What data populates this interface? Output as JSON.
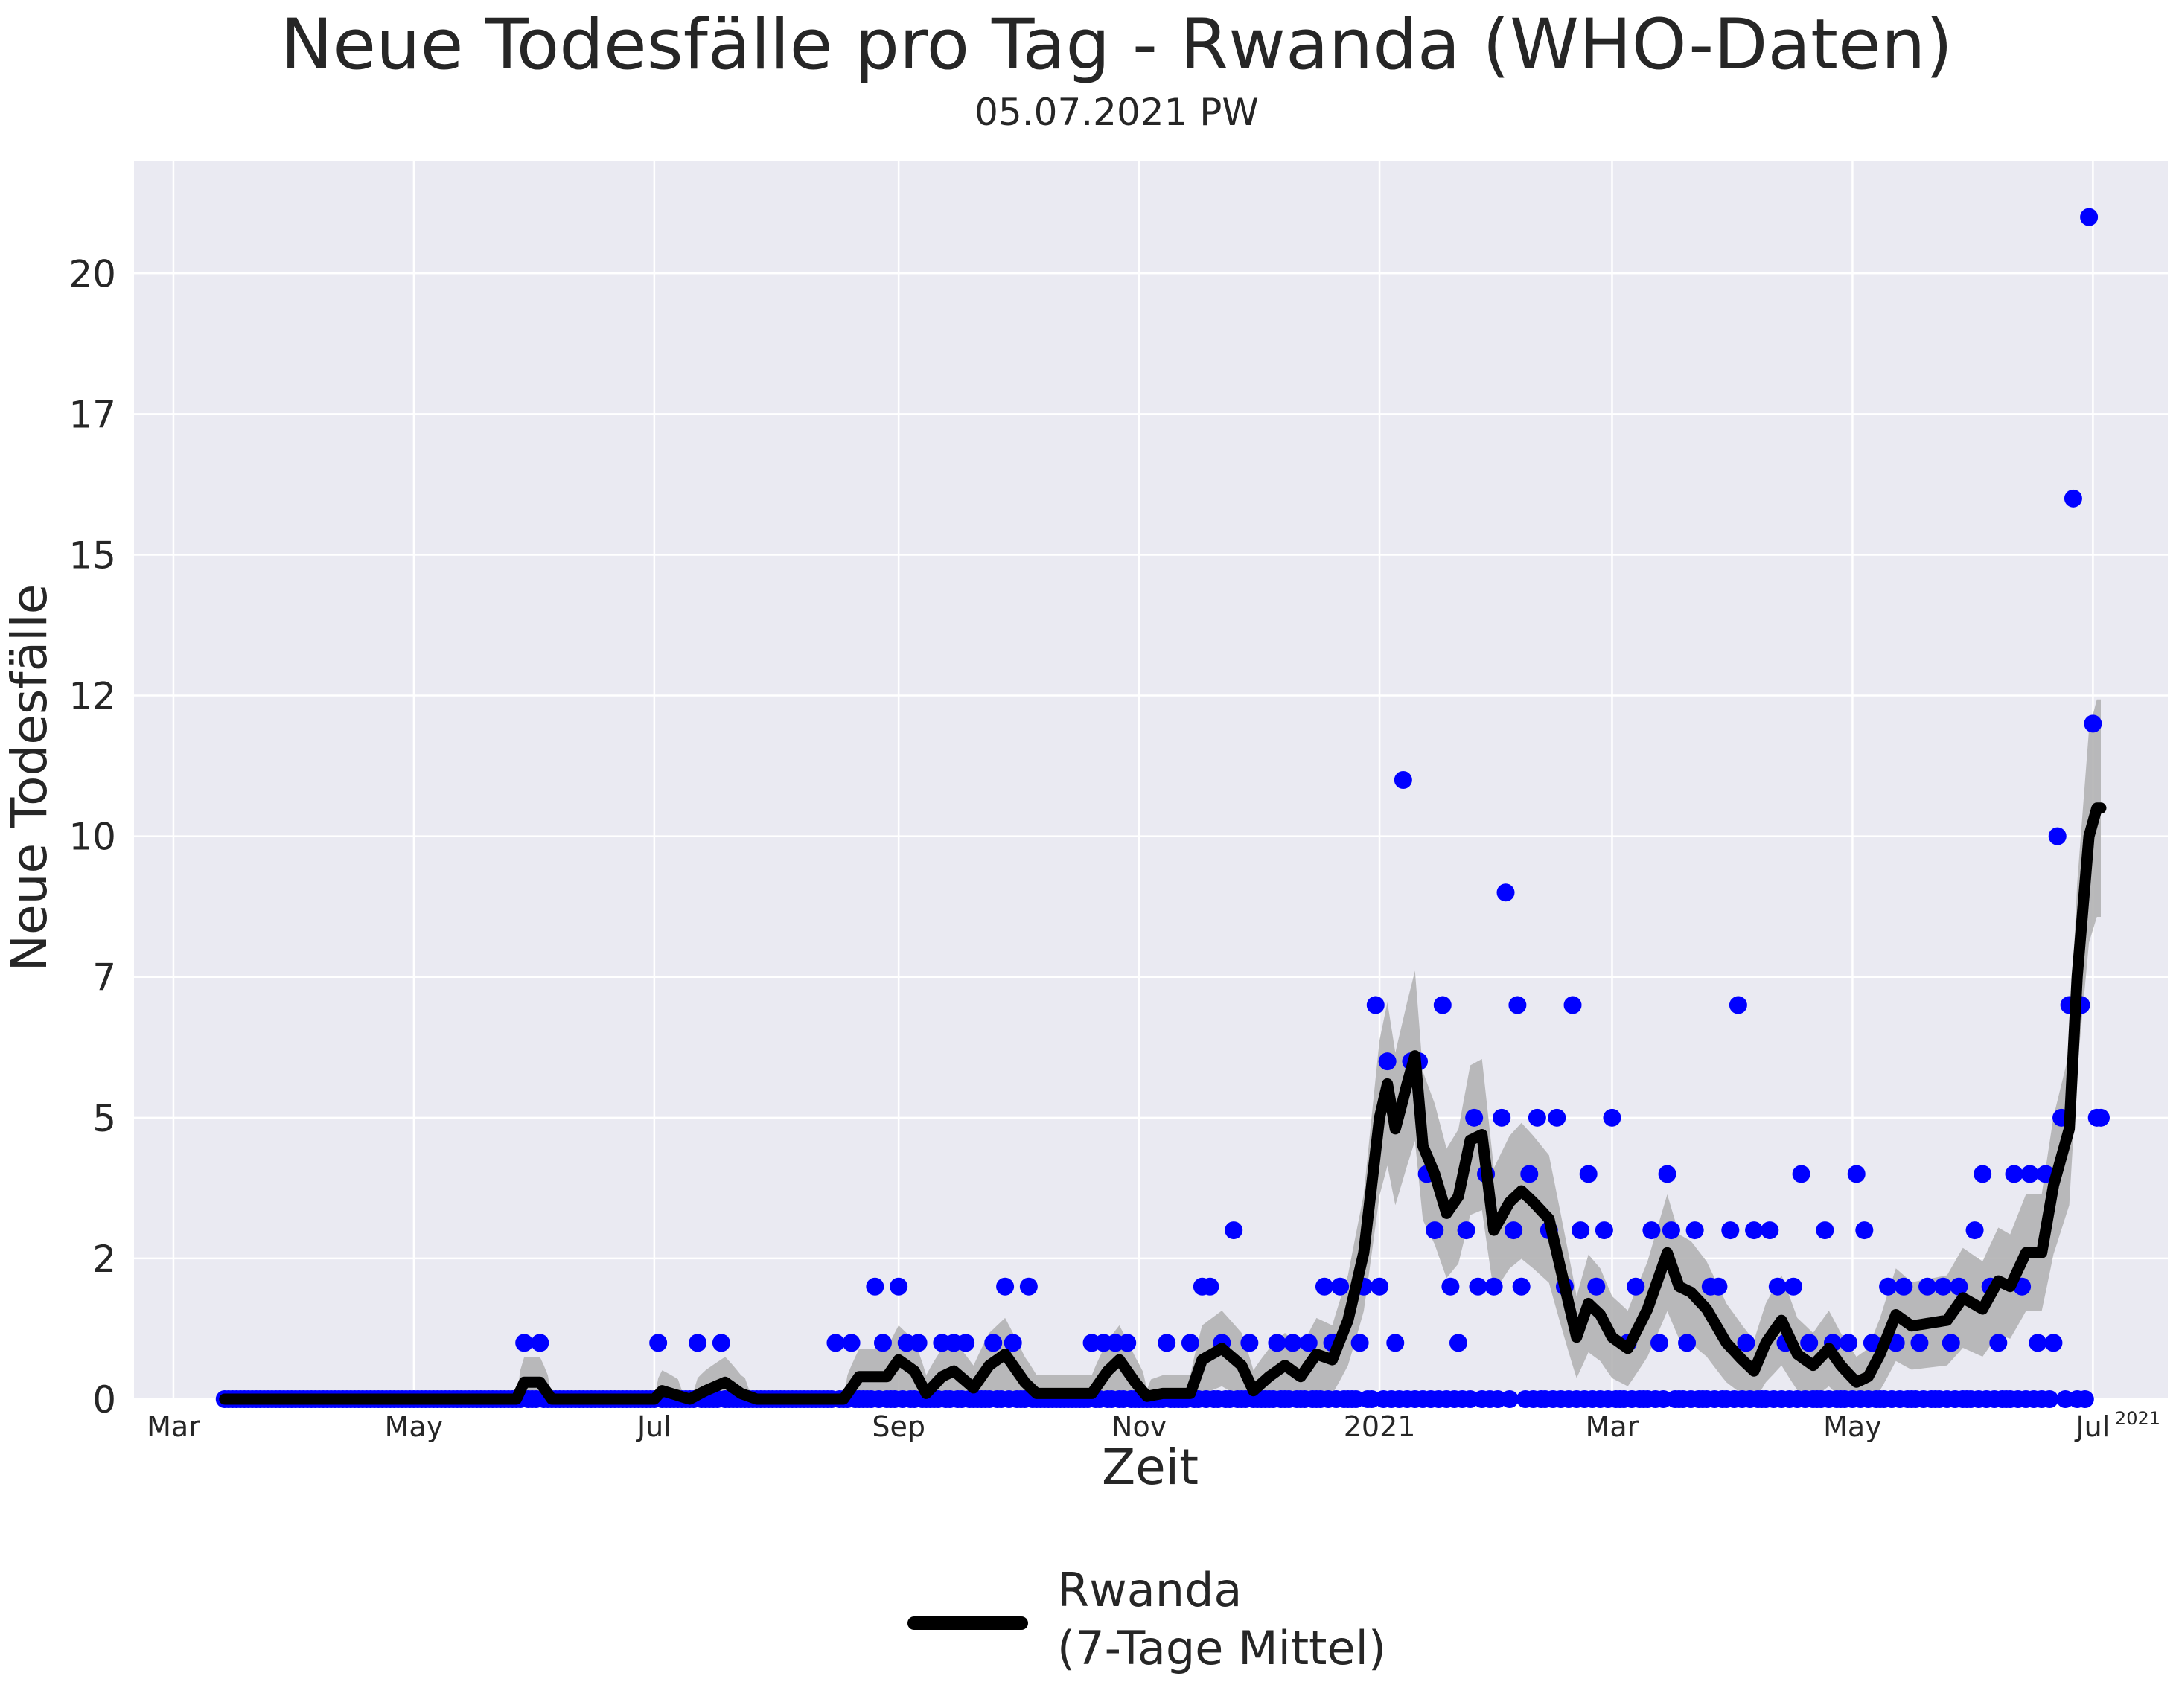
{
  "title": "Neue Todesfälle pro Tag - Rwanda (WHO-Daten)",
  "subtitle": "05.07.2021 PW",
  "chart_data": {
    "type": "line",
    "xlabel": "Zeit",
    "ylabel": "Neue Todesfälle",
    "x_tick_labels": [
      "Mar",
      "May",
      "Jul",
      "Sep",
      "Nov",
      "2021",
      "Mar",
      "May",
      "Jul"
    ],
    "x_tick_dates": [
      "2020-03-01",
      "2020-05-01",
      "2020-07-01",
      "2020-09-01",
      "2020-11-01",
      "2021-01-01",
      "2021-03-01",
      "2021-05-01",
      "2021-07-01"
    ],
    "x_offset_label": "2021",
    "y_tick_labels": [
      "0",
      "2",
      "5",
      "7",
      "10",
      "12",
      "15",
      "17",
      "20"
    ],
    "y_tick_values": [
      0,
      2.5,
      5,
      7.5,
      10,
      12.5,
      15,
      17.5,
      20
    ],
    "xlim": [
      "2020-02-20",
      "2021-07-20"
    ],
    "ylim": [
      0,
      22
    ],
    "grid": true,
    "legend_position": "bottom-center",
    "colors": {
      "background": "#eaeaf2",
      "grid": "#ffffff",
      "points": "#0000ff",
      "line": "#000000",
      "band": "#b3b3b4"
    },
    "series": [
      {
        "name": "Rwanda\n(7-Tage Mittel)",
        "kind": "7-day-mean",
        "points": [
          [
            "2020-03-14",
            0
          ],
          [
            "2020-05-01",
            0
          ],
          [
            "2020-05-27",
            0
          ],
          [
            "2020-05-29",
            0.3
          ],
          [
            "2020-06-02",
            0.3
          ],
          [
            "2020-06-05",
            0
          ],
          [
            "2020-07-01",
            0
          ],
          [
            "2020-07-03",
            0.15
          ],
          [
            "2020-07-10",
            0
          ],
          [
            "2020-07-14",
            0.15
          ],
          [
            "2020-07-19",
            0.3
          ],
          [
            "2020-07-23",
            0.1
          ],
          [
            "2020-07-27",
            0
          ],
          [
            "2020-08-18",
            0
          ],
          [
            "2020-08-22",
            0.4
          ],
          [
            "2020-08-29",
            0.4
          ],
          [
            "2020-09-01",
            0.7
          ],
          [
            "2020-09-05",
            0.5
          ],
          [
            "2020-09-08",
            0.1
          ],
          [
            "2020-09-12",
            0.4
          ],
          [
            "2020-09-15",
            0.5
          ],
          [
            "2020-09-20",
            0.2
          ],
          [
            "2020-09-24",
            0.6
          ],
          [
            "2020-09-28",
            0.8
          ],
          [
            "2020-10-03",
            0.3
          ],
          [
            "2020-10-06",
            0.1
          ],
          [
            "2020-10-20",
            0.1
          ],
          [
            "2020-10-24",
            0.5
          ],
          [
            "2020-10-27",
            0.7
          ],
          [
            "2020-10-31",
            0.3
          ],
          [
            "2020-11-03",
            0.05
          ],
          [
            "2020-11-07",
            0.1
          ],
          [
            "2020-11-14",
            0.1
          ],
          [
            "2020-11-17",
            0.7
          ],
          [
            "2020-11-22",
            0.9
          ],
          [
            "2020-11-27",
            0.6
          ],
          [
            "2020-11-30",
            0.15
          ],
          [
            "2020-12-04",
            0.4
          ],
          [
            "2020-12-08",
            0.6
          ],
          [
            "2020-12-12",
            0.4
          ],
          [
            "2020-12-16",
            0.8
          ],
          [
            "2020-12-20",
            0.7
          ],
          [
            "2020-12-24",
            1.4
          ],
          [
            "2020-12-28",
            2.6
          ],
          [
            "2021-01-01",
            5.0
          ],
          [
            "2021-01-03",
            5.6
          ],
          [
            "2021-01-05",
            4.8
          ],
          [
            "2021-01-08",
            5.6
          ],
          [
            "2021-01-10",
            6.1
          ],
          [
            "2021-01-12",
            4.5
          ],
          [
            "2021-01-15",
            4.0
          ],
          [
            "2021-01-18",
            3.3
          ],
          [
            "2021-01-21",
            3.6
          ],
          [
            "2021-01-24",
            4.6
          ],
          [
            "2021-01-27",
            4.7
          ],
          [
            "2021-01-30",
            3.0
          ],
          [
            "2021-02-03",
            3.5
          ],
          [
            "2021-02-06",
            3.7
          ],
          [
            "2021-02-09",
            3.5
          ],
          [
            "2021-02-13",
            3.2
          ],
          [
            "2021-02-17",
            2.0
          ],
          [
            "2021-02-20",
            1.1
          ],
          [
            "2021-02-23",
            1.7
          ],
          [
            "2021-02-26",
            1.5
          ],
          [
            "2021-03-01",
            1.1
          ],
          [
            "2021-03-05",
            0.9
          ],
          [
            "2021-03-10",
            1.6
          ],
          [
            "2021-03-15",
            2.6
          ],
          [
            "2021-03-18",
            2.0
          ],
          [
            "2021-03-21",
            1.9
          ],
          [
            "2021-03-25",
            1.6
          ],
          [
            "2021-03-30",
            1.0
          ],
          [
            "2021-04-03",
            0.7
          ],
          [
            "2021-04-06",
            0.5
          ],
          [
            "2021-04-09",
            1.0
          ],
          [
            "2021-04-13",
            1.4
          ],
          [
            "2021-04-17",
            0.8
          ],
          [
            "2021-04-21",
            0.6
          ],
          [
            "2021-04-25",
            0.9
          ],
          [
            "2021-04-28",
            0.6
          ],
          [
            "2021-05-02",
            0.3
          ],
          [
            "2021-05-05",
            0.4
          ],
          [
            "2021-05-08",
            0.8
          ],
          [
            "2021-05-12",
            1.5
          ],
          [
            "2021-05-16",
            1.3
          ],
          [
            "2021-05-25",
            1.4
          ],
          [
            "2021-05-29",
            1.8
          ],
          [
            "2021-06-03",
            1.6
          ],
          [
            "2021-06-07",
            2.1
          ],
          [
            "2021-06-10",
            2.0
          ],
          [
            "2021-06-14",
            2.6
          ],
          [
            "2021-06-18",
            2.6
          ],
          [
            "2021-06-21",
            3.8
          ],
          [
            "2021-06-25",
            4.8
          ],
          [
            "2021-06-27",
            7.5
          ],
          [
            "2021-06-30",
            10.0
          ],
          [
            "2021-07-02",
            10.5
          ],
          [
            "2021-07-03",
            10.5
          ]
        ]
      },
      {
        "name": "",
        "kind": "daily",
        "points": [
          [
            "2020-05-29",
            1
          ],
          [
            "2020-06-02",
            1
          ],
          [
            "2020-07-02",
            1
          ],
          [
            "2020-07-12",
            1
          ],
          [
            "2020-07-18",
            1
          ],
          [
            "2020-08-16",
            1
          ],
          [
            "2020-08-20",
            1
          ],
          [
            "2020-08-26",
            2
          ],
          [
            "2020-08-28",
            1
          ],
          [
            "2020-09-01",
            2
          ],
          [
            "2020-09-03",
            1
          ],
          [
            "2020-09-06",
            1
          ],
          [
            "2020-09-12",
            1
          ],
          [
            "2020-09-15",
            1
          ],
          [
            "2020-09-18",
            1
          ],
          [
            "2020-09-25",
            1
          ],
          [
            "2020-09-28",
            2
          ],
          [
            "2020-09-30",
            1
          ],
          [
            "2020-10-04",
            2
          ],
          [
            "2020-10-20",
            1
          ],
          [
            "2020-10-23",
            1
          ],
          [
            "2020-10-26",
            1
          ],
          [
            "2020-10-29",
            1
          ],
          [
            "2020-11-08",
            1
          ],
          [
            "2020-11-14",
            1
          ],
          [
            "2020-11-17",
            2
          ],
          [
            "2020-11-19",
            2
          ],
          [
            "2020-11-22",
            1
          ],
          [
            "2020-11-25",
            3
          ],
          [
            "2020-11-29",
            1
          ],
          [
            "2020-12-06",
            1
          ],
          [
            "2020-12-10",
            1
          ],
          [
            "2020-12-14",
            1
          ],
          [
            "2020-12-18",
            2
          ],
          [
            "2020-12-20",
            1
          ],
          [
            "2020-12-22",
            2
          ],
          [
            "2020-12-27",
            1
          ],
          [
            "2020-12-28",
            2
          ],
          [
            "2020-12-31",
            7
          ],
          [
            "2021-01-01",
            2
          ],
          [
            "2021-01-03",
            6
          ],
          [
            "2021-01-05",
            1
          ],
          [
            "2021-01-07",
            11
          ],
          [
            "2021-01-09",
            6
          ],
          [
            "2021-01-11",
            6
          ],
          [
            "2021-01-13",
            4
          ],
          [
            "2021-01-15",
            3
          ],
          [
            "2021-01-17",
            7
          ],
          [
            "2021-01-19",
            2
          ],
          [
            "2021-01-21",
            1
          ],
          [
            "2021-01-23",
            3
          ],
          [
            "2021-01-25",
            5
          ],
          [
            "2021-01-26",
            2
          ],
          [
            "2021-01-28",
            4
          ],
          [
            "2021-01-30",
            2
          ],
          [
            "2021-02-01",
            5
          ],
          [
            "2021-02-02",
            9
          ],
          [
            "2021-02-04",
            3
          ],
          [
            "2021-02-05",
            7
          ],
          [
            "2021-02-06",
            2
          ],
          [
            "2021-02-08",
            4
          ],
          [
            "2021-02-10",
            5
          ],
          [
            "2021-02-12",
            0
          ],
          [
            "2021-02-13",
            3
          ],
          [
            "2021-02-15",
            5
          ],
          [
            "2021-02-17",
            2
          ],
          [
            "2021-02-19",
            7
          ],
          [
            "2021-02-21",
            3
          ],
          [
            "2021-02-23",
            4
          ],
          [
            "2021-02-25",
            2
          ],
          [
            "2021-02-27",
            3
          ],
          [
            "2021-03-01",
            5
          ],
          [
            "2021-03-03",
            0
          ],
          [
            "2021-03-05",
            1
          ],
          [
            "2021-03-07",
            2
          ],
          [
            "2021-03-09",
            0
          ],
          [
            "2021-03-11",
            3
          ],
          [
            "2021-03-13",
            1
          ],
          [
            "2021-03-15",
            4
          ],
          [
            "2021-03-16",
            3
          ],
          [
            "2021-03-18",
            0
          ],
          [
            "2021-03-20",
            1
          ],
          [
            "2021-03-22",
            3
          ],
          [
            "2021-03-24",
            0
          ],
          [
            "2021-03-26",
            2
          ],
          [
            "2021-03-28",
            2
          ],
          [
            "2021-03-31",
            3
          ],
          [
            "2021-04-02",
            7
          ],
          [
            "2021-04-04",
            1
          ],
          [
            "2021-04-06",
            3
          ],
          [
            "2021-04-08",
            0
          ],
          [
            "2021-04-10",
            3
          ],
          [
            "2021-04-12",
            2
          ],
          [
            "2021-04-14",
            1
          ],
          [
            "2021-04-16",
            2
          ],
          [
            "2021-04-18",
            4
          ],
          [
            "2021-04-20",
            1
          ],
          [
            "2021-04-22",
            0
          ],
          [
            "2021-04-24",
            3
          ],
          [
            "2021-04-26",
            1
          ],
          [
            "2021-04-28",
            0
          ],
          [
            "2021-04-30",
            1
          ],
          [
            "2021-05-02",
            4
          ],
          [
            "2021-05-04",
            3
          ],
          [
            "2021-05-06",
            1
          ],
          [
            "2021-05-08",
            0
          ],
          [
            "2021-05-10",
            2
          ],
          [
            "2021-05-12",
            1
          ],
          [
            "2021-05-14",
            2
          ],
          [
            "2021-05-16",
            0
          ],
          [
            "2021-05-18",
            1
          ],
          [
            "2021-05-20",
            2
          ],
          [
            "2021-05-22",
            0
          ],
          [
            "2021-05-24",
            2
          ],
          [
            "2021-05-26",
            1
          ],
          [
            "2021-05-28",
            2
          ],
          [
            "2021-06-01",
            3
          ],
          [
            "2021-06-03",
            4
          ],
          [
            "2021-06-05",
            2
          ],
          [
            "2021-06-07",
            1
          ],
          [
            "2021-06-09",
            0
          ],
          [
            "2021-06-11",
            4
          ],
          [
            "2021-06-13",
            2
          ],
          [
            "2021-06-15",
            4
          ],
          [
            "2021-06-17",
            1
          ],
          [
            "2021-06-19",
            4
          ],
          [
            "2021-06-21",
            1
          ],
          [
            "2021-06-22",
            10
          ],
          [
            "2021-06-23",
            5
          ],
          [
            "2021-06-25",
            7
          ],
          [
            "2021-06-26",
            16
          ],
          [
            "2021-06-28",
            7
          ],
          [
            "2021-06-30",
            21
          ],
          [
            "2021-07-01",
            12
          ],
          [
            "2021-07-02",
            5
          ],
          [
            "2021-07-03",
            5
          ]
        ]
      }
    ]
  }
}
